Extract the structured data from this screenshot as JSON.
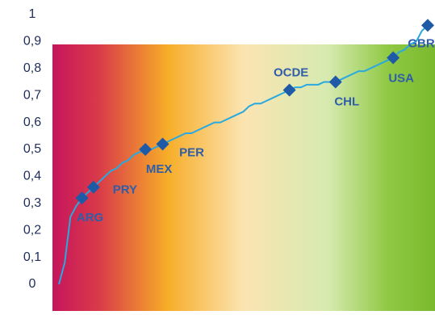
{
  "chart_data": {
    "type": "line",
    "ylim": [
      0,
      1
    ],
    "yticks": [
      0,
      {
        "value": 0.1,
        "label": "0,1"
      },
      {
        "value": 0.2,
        "label": "0,2"
      },
      {
        "value": 0.3,
        "label": "0,3"
      },
      {
        "value": 0.4,
        "label": "0,4"
      },
      {
        "value": 0.5,
        "label": "0,5"
      },
      {
        "value": 0.6,
        "label": "0,6"
      },
      {
        "value": 0.7,
        "label": "0,7"
      },
      {
        "value": 0.8,
        "label": "0,8"
      },
      {
        "value": 0.9,
        "label": "0,9"
      },
      1
    ],
    "categories": [
      null,
      null,
      null,
      null,
      "ARG",
      null,
      "PRY",
      null,
      null,
      null,
      null,
      null,
      null,
      null,
      null,
      "MEX",
      null,
      null,
      "PER",
      null,
      null,
      null,
      null,
      null,
      null,
      null,
      null,
      null,
      null,
      null,
      null,
      null,
      null,
      null,
      null,
      null,
      null,
      null,
      null,
      null,
      "OCDE",
      null,
      null,
      null,
      null,
      null,
      null,
      null,
      "CHL",
      null,
      null,
      null,
      null,
      null,
      null,
      null,
      null,
      null,
      "USA",
      null,
      null,
      null,
      null,
      null,
      "GBR"
    ],
    "series": [
      {
        "color": "#29a9e0",
        "marker_color": "#1f5aa6",
        "values": [
          0.0,
          0.08,
          0.25,
          0.29,
          0.32,
          0.34,
          0.36,
          0.38,
          0.4,
          0.42,
          0.43,
          0.45,
          0.46,
          0.48,
          0.49,
          0.5,
          0.5,
          0.51,
          0.52,
          0.53,
          0.54,
          0.55,
          0.56,
          0.56,
          0.57,
          0.58,
          0.59,
          0.6,
          0.6,
          0.61,
          0.62,
          0.63,
          0.64,
          0.66,
          0.67,
          0.67,
          0.68,
          0.69,
          0.7,
          0.71,
          0.72,
          0.73,
          0.73,
          0.74,
          0.74,
          0.74,
          0.75,
          0.75,
          0.75,
          0.76,
          0.77,
          0.78,
          0.79,
          0.79,
          0.8,
          0.81,
          0.82,
          0.83,
          0.84,
          0.86,
          0.87,
          0.89,
          0.9,
          0.94,
          0.96
        ]
      }
    ]
  }
}
